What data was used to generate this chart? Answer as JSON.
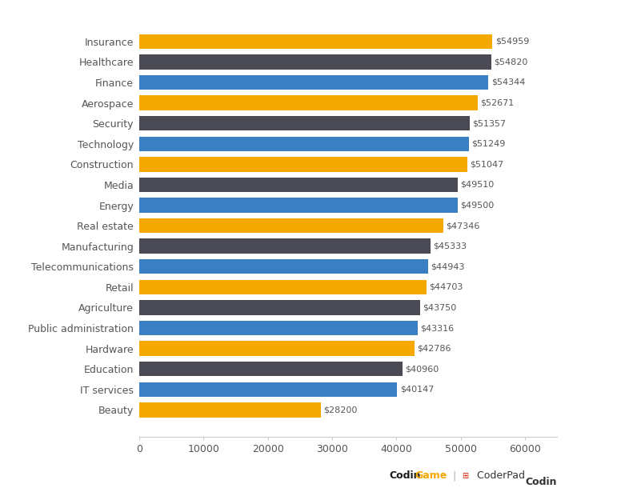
{
  "categories": [
    "Beauty",
    "IT services",
    "Education",
    "Hardware",
    "Public administration",
    "Agriculture",
    "Retail",
    "Telecommunications",
    "Manufacturing",
    "Real estate",
    "Energy",
    "Media",
    "Construction",
    "Technology",
    "Security",
    "Aerospace",
    "Finance",
    "Healthcare",
    "Insurance"
  ],
  "values": [
    28200,
    40147,
    40960,
    42786,
    43316,
    43750,
    44703,
    44943,
    45333,
    47346,
    49500,
    49510,
    51047,
    51249,
    51357,
    52671,
    54344,
    54820,
    54959
  ],
  "colors": [
    "#F5A800",
    "#3A7FC1",
    "#4A4A55",
    "#F5A800",
    "#3A7FC1",
    "#4A4A55",
    "#F5A800",
    "#3A7FC1",
    "#4A4A55",
    "#F5A800",
    "#3A7FC1",
    "#4A4A55",
    "#F5A800",
    "#3A7FC1",
    "#4A4A55",
    "#F5A800",
    "#3A7FC1",
    "#4A4A55",
    "#F5A800"
  ],
  "xlim": [
    0,
    65000
  ],
  "xticks": [
    0,
    10000,
    20000,
    30000,
    40000,
    50000,
    60000
  ],
  "background_color": "#FFFFFF",
  "label_color": "#555555",
  "value_color": "#555555",
  "bar_height": 0.72,
  "figsize": [
    7.91,
    6.2
  ],
  "dpi": 100,
  "value_fontsize": 8,
  "label_fontsize": 9,
  "tick_fontsize": 9
}
